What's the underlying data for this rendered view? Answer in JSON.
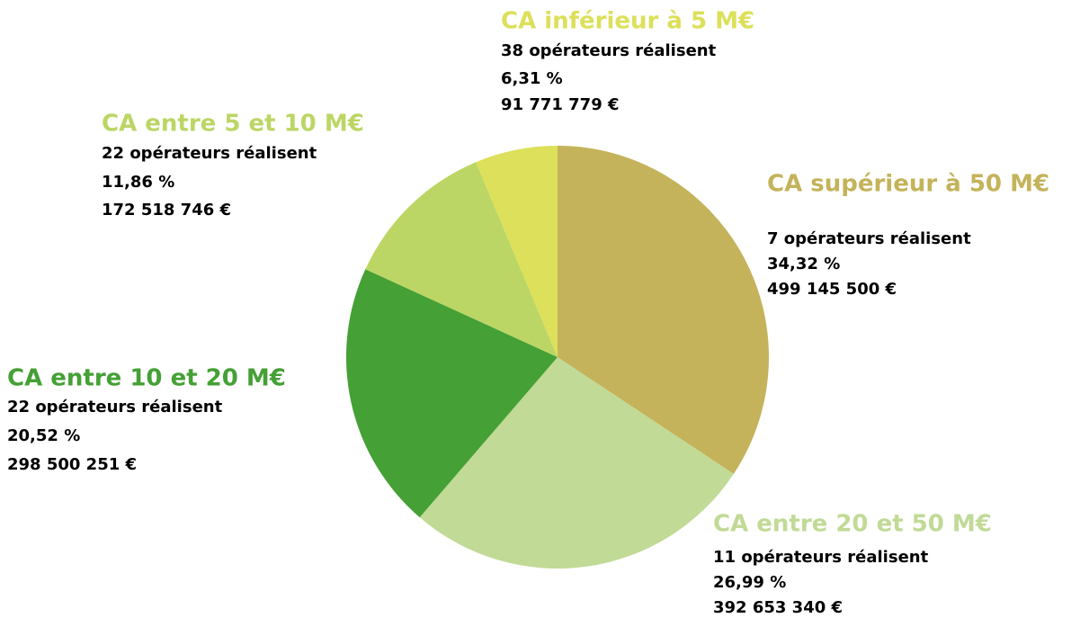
{
  "chart_data": {
    "type": "pie",
    "categories": [
      "CA supérieur à 50 M€",
      "CA entre 20 et 50 M€",
      "CA entre 10 et 20 M€",
      "CA entre 5 et 10 M€",
      "CA inférieur à 5 M€"
    ],
    "values": [
      34.32,
      26.99,
      20.52,
      11.86,
      6.31
    ],
    "value_labels": [
      "34,32 %",
      "26,99 %",
      "20,52 %",
      "11,86 %",
      "6,31 %"
    ],
    "operator_labels": [
      "7 opérateurs réalisent",
      "11 opérateurs réalisent",
      "22 opérateurs réalisent",
      "22 opérateurs réalisent",
      "38 opérateurs réalisent"
    ],
    "amount_labels": [
      "499 145 500 €",
      "392 653 340 €",
      "298 500 251 €",
      "172 518 746 €",
      "91 771 779 €"
    ],
    "colors": [
      "#c4b35a",
      "#c1da96",
      "#45a035",
      "#bcd665",
      "#dce05a"
    ]
  }
}
